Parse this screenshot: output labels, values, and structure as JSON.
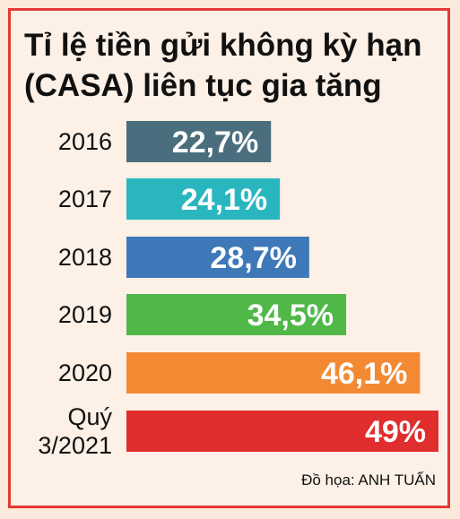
{
  "header": {
    "title_line1": "Tỉ lệ tiền gửi không kỳ hạn",
    "title_line2": "(CASA) liên tục gia tăng"
  },
  "credit": "Đồ họa: ANH TUẤN",
  "chart_data": {
    "type": "bar",
    "orientation": "horizontal",
    "title": "Tỉ lệ tiền gửi không kỳ hạn (CASA) liên tục gia tăng",
    "categories": [
      "2016",
      "2017",
      "2018",
      "2019",
      "2020",
      "Quý 3/2021"
    ],
    "category_lines": [
      [
        "2016"
      ],
      [
        "2017"
      ],
      [
        "2018"
      ],
      [
        "2019"
      ],
      [
        "2020"
      ],
      [
        "Quý",
        "3/2021"
      ]
    ],
    "values": [
      22.7,
      24.1,
      28.7,
      34.5,
      46.1,
      49
    ],
    "value_labels": [
      "22,7%",
      "24,1%",
      "28,7%",
      "34,5%",
      "46,1%",
      "49%"
    ],
    "colors": [
      "#4a6e7e",
      "#2ab6bf",
      "#3f78b8",
      "#4fb848",
      "#f38a33",
      "#e02d2d"
    ],
    "xlim": [
      0,
      49
    ],
    "grid": false,
    "legend": "none"
  }
}
